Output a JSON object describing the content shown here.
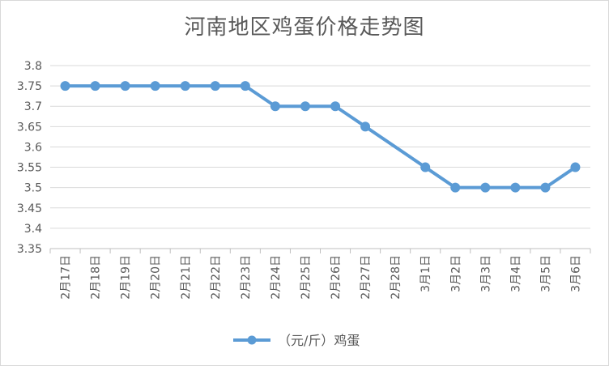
{
  "chart_data": {
    "type": "line",
    "title": "河南地区鸡蛋价格走势图",
    "xlabel": "",
    "ylabel": "",
    "categories": [
      "2月17日",
      "2月18日",
      "2月19日",
      "2月20日",
      "2月21日",
      "2月22日",
      "2月23日",
      "2月24日",
      "2月25日",
      "2月26日",
      "2月27日",
      "2月28日",
      "3月1日",
      "3月2日",
      "3月3日",
      "3月4日",
      "3月5日",
      "3月6日"
    ],
    "series": [
      {
        "name": "（元/斤）鸡蛋",
        "values": [
          3.75,
          3.75,
          3.75,
          3.75,
          3.75,
          3.75,
          3.75,
          3.7,
          3.7,
          3.7,
          3.65,
          null,
          3.55,
          3.5,
          3.5,
          3.5,
          3.5,
          3.55
        ],
        "color": "#5b9bd5"
      }
    ],
    "ylim": [
      3.35,
      3.8
    ],
    "yticks": [
      "3.35",
      "3.4",
      "3.45",
      "3.5",
      "3.55",
      "3.6",
      "3.65",
      "3.7",
      "3.75",
      "3.8"
    ],
    "grid": true,
    "legend_position": "bottom"
  }
}
